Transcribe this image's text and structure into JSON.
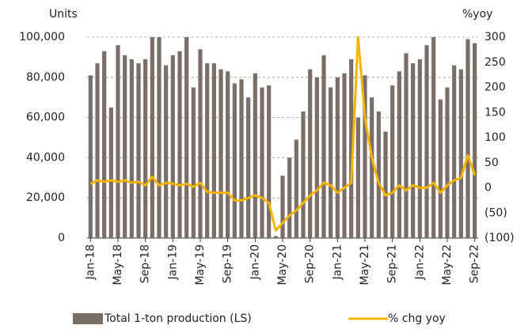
{
  "chart_data": {
    "type": "bar_line",
    "y_label": "Units",
    "y2_label": "%yoy",
    "categories": [
      "Jan-18",
      null,
      null,
      null,
      "May-18",
      null,
      null,
      null,
      "Sep-18",
      null,
      null,
      null,
      "Jan-19",
      null,
      null,
      null,
      "May-19",
      null,
      null,
      null,
      "Sep-19",
      null,
      null,
      null,
      "Jan-20",
      null,
      null,
      null,
      "May-20",
      null,
      null,
      null,
      "Sep-20",
      null,
      null,
      null,
      "Jan-21",
      null,
      null,
      null,
      "May-21",
      null,
      null,
      null,
      "Sep-21",
      null,
      null,
      null,
      "Jan-22",
      null,
      null,
      null,
      "May-22",
      null,
      null,
      null,
      "Sep-22"
    ],
    "series": [
      {
        "name": "Total 1-ton production (LS)",
        "color": "#7a6e69",
        "kind": "bar",
        "values": [
          81000,
          87000,
          93000,
          65000,
          96000,
          91000,
          89000,
          87000,
          89000,
          100000,
          100000,
          86000,
          91000,
          93000,
          100000,
          75000,
          94000,
          87000,
          87000,
          84000,
          83000,
          77000,
          79000,
          70000,
          82000,
          75000,
          76000,
          1000,
          31000,
          40000,
          49000,
          63000,
          84000,
          80000,
          91000,
          75000,
          80000,
          82000,
          89000,
          60000,
          81000,
          70000,
          63000,
          53000,
          76000,
          83000,
          92000,
          87000,
          89000,
          96000,
          100000,
          69000,
          75000,
          86000,
          84000,
          99000,
          97000
        ]
      },
      {
        "name": "% chg yoy",
        "color": "#f5b400",
        "kind": "line",
        "axis": "y2",
        "values": [
          8,
          15,
          12,
          15,
          12,
          15,
          10,
          12,
          5,
          22,
          5,
          10,
          8,
          5,
          8,
          2,
          10,
          -8,
          -10,
          -10,
          -10,
          -25,
          -25,
          -20,
          -15,
          -20,
          -30,
          -85,
          -70,
          -55,
          -45,
          -30,
          -15,
          -5,
          10,
          5,
          -10,
          0,
          10,
          300,
          140,
          60,
          10,
          -15,
          -10,
          5,
          -5,
          5,
          0,
          0,
          10,
          -10,
          5,
          15,
          20,
          65,
          25
        ]
      }
    ],
    "ylim": [
      0,
      100000
    ],
    "yticks": [
      0,
      {
        "value": 20000,
        "label": "20,000"
      },
      {
        "value": 40000,
        "label": "40,000"
      },
      {
        "value": 60000,
        "label": "60,000"
      },
      {
        "value": 80000,
        "label": "80,000"
      },
      {
        "value": 100000,
        "label": "100,000"
      }
    ],
    "y2lim": [
      -100,
      300
    ],
    "y2ticks": [
      {
        "value": -100,
        "label": "(100)"
      },
      {
        "value": -50,
        "label": "(50)"
      },
      0,
      50,
      100,
      150,
      200,
      250,
      300
    ],
    "grid": true,
    "legend": "bottom"
  }
}
